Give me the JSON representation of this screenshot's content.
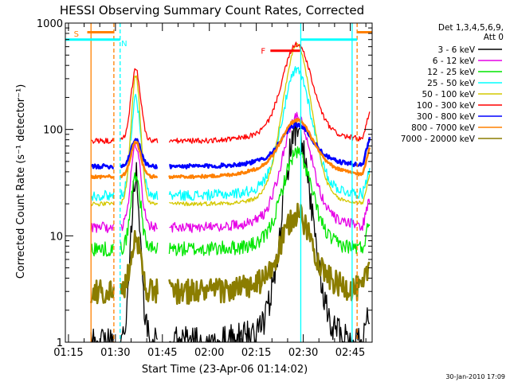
{
  "chart_data": {
    "type": "line",
    "title": "HESSI Observing Summary Count Rates, Corrected",
    "xlabel": "Start Time (23-Apr-06 01:14:02)",
    "ylabel": "Corrected Count Rate (s⁻¹ detector⁻¹)",
    "yscale": "log",
    "ylim": [
      1,
      1000
    ],
    "xlim_minutes": [
      0,
      98
    ],
    "xticks": [
      {
        "t": 1,
        "label": "01:15"
      },
      {
        "t": 16,
        "label": "01:30"
      },
      {
        "t": 31,
        "label": "01:45"
      },
      {
        "t": 46,
        "label": "02:00"
      },
      {
        "t": 61,
        "label": "02:15"
      },
      {
        "t": 76,
        "label": "02:30"
      },
      {
        "t": 91,
        "label": "02:45"
      }
    ],
    "yticks": [
      {
        "v": 1,
        "label": "1"
      },
      {
        "v": 10,
        "label": "10"
      },
      {
        "v": 100,
        "label": "100"
      },
      {
        "v": 1000,
        "label": "1000"
      }
    ],
    "legend": {
      "header_line1": "Det 1,3,4,5,6,9,",
      "header_line2": "Att 0",
      "placement": "right, outside plot"
    },
    "series": [
      {
        "name": "3 - 6 keV",
        "color": "#000000",
        "base": 1.0,
        "peak": 70,
        "noise": 0.15,
        "bump": 0.15
      },
      {
        "name": "6 - 12 keV",
        "color": "#e600e6",
        "base": 12,
        "peak": 100,
        "noise": 0.05,
        "bump": 0.25
      },
      {
        "name": "12 - 25 keV",
        "color": "#00e600",
        "base": 7.5,
        "peak": 50,
        "noise": 0.07,
        "bump": 0.2
      },
      {
        "name": "25 - 50 keV",
        "color": "#00ffff",
        "base": 24,
        "peak": 280,
        "noise": 0.05,
        "bump": 0.2
      },
      {
        "name": "50 - 100 keV",
        "color": "#d4c800",
        "base": 20,
        "peak": 520,
        "noise": 0.02,
        "bump": 0.1
      },
      {
        "name": "100 - 300 keV",
        "color": "#ff0000",
        "base": 78,
        "peak": 480,
        "noise": 0.025,
        "bump": 0.3
      },
      {
        "name": "300 - 800 keV",
        "color": "#0000ff",
        "base": 45,
        "peak": 90,
        "noise": 0.02,
        "bump": 0.6
      },
      {
        "name": "800 - 7000 keV",
        "color": "#ff8000",
        "base": 36,
        "peak": 88,
        "noise": 0.015,
        "bump": 0.75
      },
      {
        "name": "7000 - 20000 keV",
        "color": "#8b7d00",
        "base": 3.0,
        "peak": 12,
        "noise": 0.12,
        "bump": 0.4
      }
    ],
    "markers": {
      "vertical_lines": [
        {
          "t": 8.2,
          "color": "#ff8000",
          "style": "solid"
        },
        {
          "t": 15.5,
          "color": "#ff8000",
          "style": "dashed"
        },
        {
          "t": 17.5,
          "color": "#00ffff",
          "style": "dashed"
        },
        {
          "t": 75.2,
          "color": "#00ffff",
          "style": "solid"
        },
        {
          "t": 91.6,
          "color": "#00ffff",
          "style": "solid"
        },
        {
          "t": 93.2,
          "color": "#ff8000",
          "style": "dashed"
        }
      ],
      "horizontal_bars": [
        {
          "t0": 0,
          "t1": 17.5,
          "value": 700,
          "color": "#00ffff"
        },
        {
          "t0": 75.2,
          "t1": 93.2,
          "value": 700,
          "color": "#00ffff"
        },
        {
          "t0": 7.0,
          "t1": 15.5,
          "value": 820,
          "color": "#ff8000"
        },
        {
          "t0": 65.5,
          "t1": 75.0,
          "value": 550,
          "color": "#ff0000"
        },
        {
          "t0": 93.2,
          "t1": 98,
          "value": 820,
          "color": "#ff8000"
        }
      ],
      "letters": [
        {
          "text": "S",
          "t": 3.5,
          "value": 800,
          "color": "#ff8000"
        },
        {
          "text": "N",
          "t": 18.8,
          "value": 650,
          "color": "#00ffff"
        },
        {
          "text": "F",
          "t": 63.2,
          "value": 550,
          "color": "#ff0000"
        }
      ]
    },
    "data_gaps": [
      [
        0,
        8.2
      ],
      [
        15.5,
        17.5
      ],
      [
        29.5,
        33.0
      ]
    ]
  },
  "footer": {
    "timestamp": "30-Jan-2010 17:09"
  }
}
